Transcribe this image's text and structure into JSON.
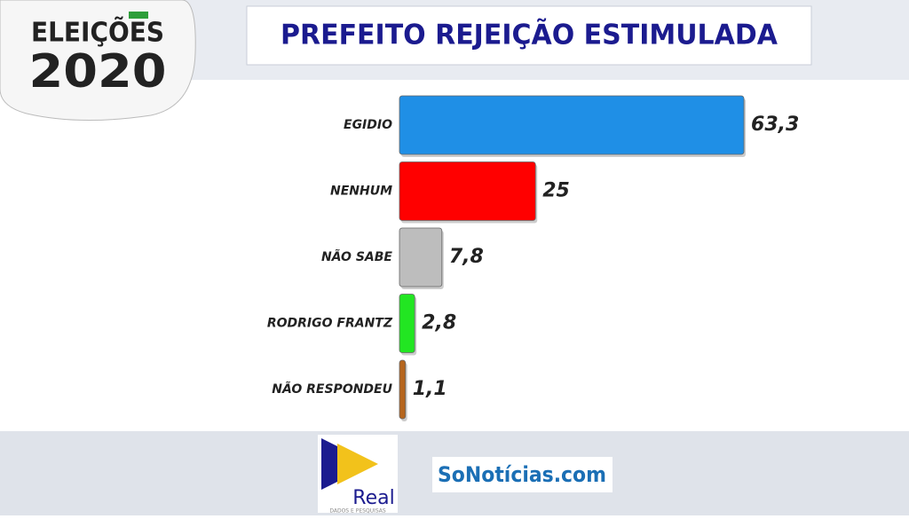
{
  "chart_data": {
    "type": "bar",
    "orientation": "horizontal",
    "title": "PREFEITO REJEIÇÃO ESTIMULADA",
    "categories": [
      "EGIDIO",
      "NENHUM",
      "NÃO SABE",
      "RODRIGO FRANTZ",
      "NÃO RESPONDEU"
    ],
    "values": [
      63.3,
      25,
      7.8,
      2.8,
      1.1
    ],
    "value_labels": [
      "63,3",
      "25",
      "7,8",
      "2,8",
      "1,1"
    ],
    "colors": [
      "#1f8fe6",
      "#ff0000",
      "#bdbdbd",
      "#22e622",
      "#b5651d"
    ]
  },
  "logo": {
    "line1": "ELEIÇÕES",
    "line2": "2020"
  },
  "footer": {
    "brand": "Real",
    "brand_tagline": "DADOS E PESQUISAS",
    "site": "SoNotícias.com"
  }
}
